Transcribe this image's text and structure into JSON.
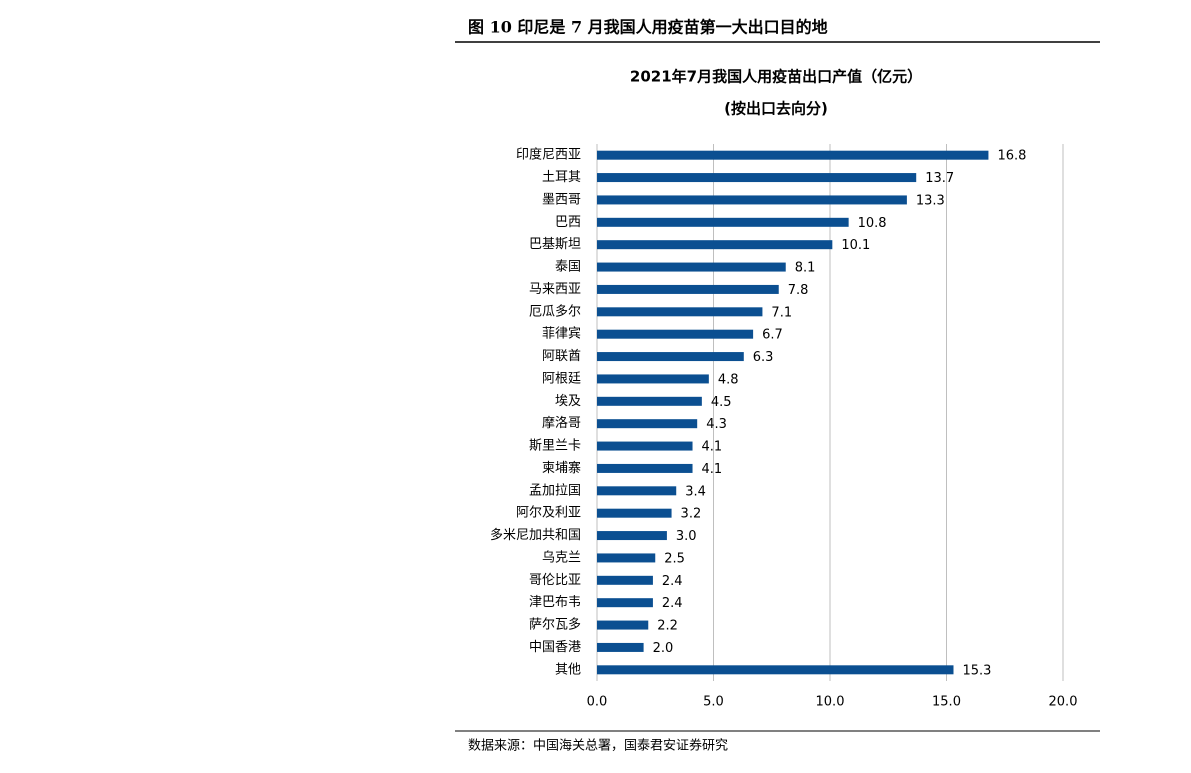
{
  "header": {
    "title": "图 10 印尼是 7 月我国人用疫苗第一大出口目的地"
  },
  "chart_data": {
    "type": "bar",
    "orientation": "horizontal",
    "title": "2021年7月我国人用疫苗出口产值（亿元）",
    "subtitle": "(按出口去向分)",
    "categories": [
      "印度尼西亚",
      "土耳其",
      "墨西哥",
      "巴西",
      "巴基斯坦",
      "泰国",
      "马来西亚",
      "厄瓜多尔",
      "菲律宾",
      "阿联酋",
      "阿根廷",
      "埃及",
      "摩洛哥",
      "斯里兰卡",
      "柬埔寨",
      "孟加拉国",
      "阿尔及利亚",
      "多米尼加共和国",
      "乌克兰",
      "哥伦比亚",
      "津巴布韦",
      "萨尔瓦多",
      "中国香港",
      "其他"
    ],
    "values": [
      16.8,
      13.7,
      13.3,
      10.8,
      10.1,
      8.1,
      7.8,
      7.1,
      6.7,
      6.3,
      4.8,
      4.5,
      4.3,
      4.1,
      4.1,
      3.4,
      3.2,
      3.0,
      2.5,
      2.4,
      2.4,
      2.2,
      2.0,
      15.3
    ],
    "value_labels": [
      "16.8",
      "13.7",
      "13.3",
      "10.8",
      "10.1",
      "8.1",
      "7.8",
      "7.1",
      "6.7",
      "6.3",
      "4.8",
      "4.5",
      "4.3",
      "4.1",
      "4.1",
      "3.4",
      "3.2",
      "3.0",
      "2.5",
      "2.4",
      "2.4",
      "2.2",
      "2.0",
      "15.3"
    ],
    "color": "#0b4f91",
    "xlim": [
      0,
      20
    ],
    "xticks": [
      {
        "value": 0,
        "label": "0.0"
      },
      {
        "value": 5,
        "label": "5.0"
      },
      {
        "value": 10,
        "label": "10.0"
      },
      {
        "value": 15,
        "label": "15.0"
      },
      {
        "value": 20,
        "label": "20.0"
      }
    ],
    "grid": true
  },
  "footer": {
    "source": "数据来源：中国海关总署，国泰君安证券研究"
  }
}
